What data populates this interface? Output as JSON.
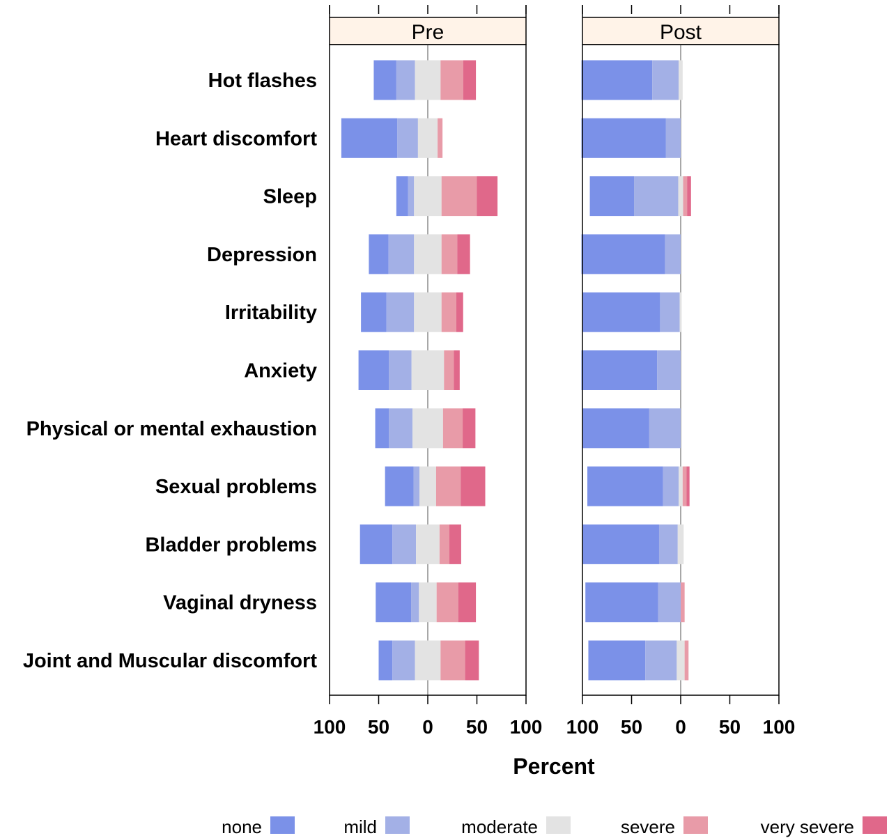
{
  "chart_data": {
    "type": "bar",
    "subtype": "diverging-stacked-likert",
    "xlabel": "Percent",
    "ylabel": "",
    "xlim": [
      -100,
      100
    ],
    "x_tick_values": [
      -100,
      -50,
      0,
      50,
      100
    ],
    "x_tick_labels": [
      "100",
      "50",
      "0",
      "50",
      "100"
    ],
    "legend_position": "bottom",
    "levels": [
      "none",
      "mild",
      "moderate",
      "severe",
      "very severe"
    ],
    "colors": {
      "none": "#7b91e8",
      "mild": "#a3b0e6",
      "moderate": "#e3e3e3",
      "severe": "#e89ba8",
      "very severe": "#e0688a"
    },
    "categories": [
      "Hot flashes",
      "Heart discomfort",
      "Sleep",
      "Depression",
      "Irritability",
      "Anxiety",
      "Physical or mental exhaustion",
      "Sexual problems",
      "Bladder problems",
      "Vaginal dryness",
      "Joint and Muscular discomfort"
    ],
    "panels": [
      {
        "name": "Pre",
        "series": [
          {
            "name": "none",
            "values": [
              23,
              57,
              12,
              20,
              26,
              31,
              14,
              29,
              33,
              36,
              14
            ]
          },
          {
            "name": "mild",
            "values": [
              19,
              21,
              6,
              26,
              28,
              23,
              24,
              6,
              24,
              8,
              23
            ]
          },
          {
            "name": "moderate",
            "values": [
              26,
              20,
              28,
              28,
              28,
              33,
              31,
              17,
              24,
              18,
              26
            ]
          },
          {
            "name": "severe",
            "values": [
              23,
              5,
              36,
              16,
              15,
              10,
              20,
              25,
              10,
              22,
              25
            ]
          },
          {
            "name": "very severe",
            "values": [
              13,
              0,
              21,
              13,
              7,
              6,
              13,
              25,
              12,
              18,
              14
            ]
          }
        ]
      },
      {
        "name": "Post",
        "series": [
          {
            "name": "none",
            "values": [
              72,
              86,
              45,
              85,
              79,
              77,
              68,
              77,
              78,
              74,
              58
            ]
          },
          {
            "name": "mild",
            "values": [
              27,
              15,
              45,
              16,
              20,
              24,
              32,
              16,
              19,
              23,
              32
            ]
          },
          {
            "name": "moderate",
            "values": [
              4,
              0,
              5,
              0,
              2,
              0,
              0,
              4,
              6,
              0,
              8
            ]
          },
          {
            "name": "severe",
            "values": [
              0,
              0,
              4,
              0,
              0,
              0,
              0,
              4,
              0,
              4,
              4
            ]
          },
          {
            "name": "very severe",
            "values": [
              0,
              0,
              4,
              0,
              0,
              0,
              0,
              3,
              0,
              0,
              0
            ]
          }
        ]
      }
    ]
  }
}
